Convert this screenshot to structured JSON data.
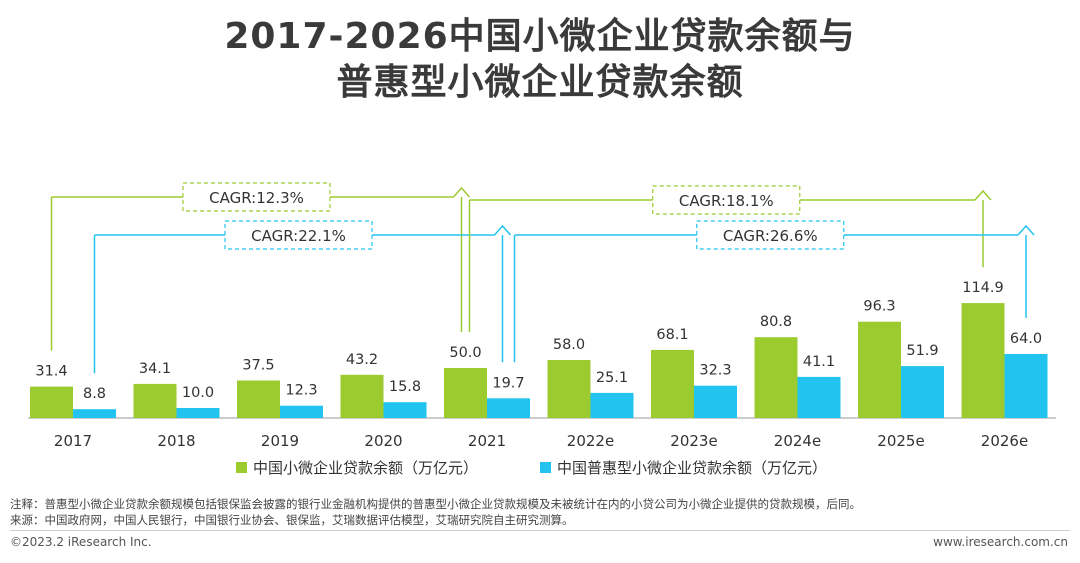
{
  "title_line1": "2017-2026中国小微企业贷款余额与",
  "title_line2": "普惠型小微企业贷款余额",
  "colors": {
    "green": "#9ccb2f",
    "blue": "#22c4ef",
    "axis": "#999999",
    "label": "#333333"
  },
  "chart_data": {
    "type": "bar",
    "categories": [
      "2017",
      "2018",
      "2019",
      "2020",
      "2021",
      "2022e",
      "2023e",
      "2024e",
      "2025e",
      "2026e"
    ],
    "series": [
      {
        "name": "中国小微企业贷款余额（万亿元）",
        "values": [
          31.4,
          34.1,
          37.5,
          43.2,
          50.0,
          58.0,
          68.1,
          80.8,
          96.3,
          114.9
        ],
        "labels": [
          "31.4",
          "34.1",
          "37.5",
          "43.2",
          "50.0",
          "58.0",
          "68.1",
          "80.8",
          "96.3",
          "114.9"
        ]
      },
      {
        "name": "中国普惠型小微企业贷款余额（万亿元）",
        "values": [
          8.8,
          10.0,
          12.3,
          15.8,
          19.7,
          25.1,
          32.3,
          41.1,
          51.9,
          64.0
        ],
        "labels": [
          "8.8",
          "10.0",
          "12.3",
          "15.8",
          "19.7",
          "25.1",
          "32.3",
          "41.1",
          "51.9",
          "64.0"
        ]
      }
    ],
    "annotations": [
      {
        "text": "CAGR:12.3%",
        "series": 0,
        "from": 0,
        "to": 4
      },
      {
        "text": "CAGR:22.1%",
        "series": 1,
        "from": 0,
        "to": 4
      },
      {
        "text": "CAGR:18.1%",
        "series": 0,
        "from": 4,
        "to": 9
      },
      {
        "text": "CAGR:26.6%",
        "series": 1,
        "from": 4,
        "to": 9
      }
    ],
    "legend_position": "bottom",
    "ylim": [
      0,
      130
    ]
  },
  "note": "注释：普惠型小微企业贷款余额规模包括银保监会披露的银行业金融机构提供的普惠型小微企业贷款规模及未被统计在内的小贷公司为小微企业提供的贷款规模，后同。",
  "source": "来源：中国政府网，中国人民银行，中国银行业协会、银保监，艾瑞数据评估模型，艾瑞研究院自主研究测算。",
  "footer_left": "©2023.2 iResearch Inc.",
  "footer_right": "www.iresearch.com.cn"
}
